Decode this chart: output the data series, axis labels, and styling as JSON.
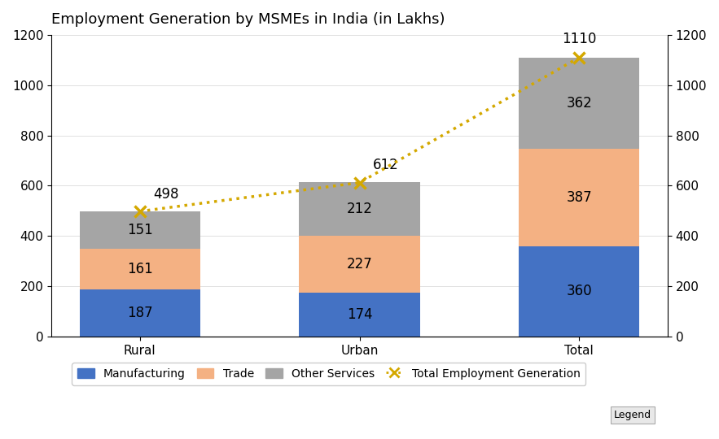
{
  "title": "Employment Generation by MSMEs in India (in Lakhs)",
  "categories": [
    "Rural",
    "Urban",
    "Total"
  ],
  "manufacturing": [
    187,
    174,
    360
  ],
  "trade": [
    161,
    227,
    387
  ],
  "other_services": [
    151,
    212,
    362
  ],
  "total_employment": [
    498,
    612,
    1110
  ],
  "bar_colors": {
    "manufacturing": "#4472C4",
    "trade": "#F4B183",
    "other_services": "#A5A5A5"
  },
  "line_color": "#D4A800",
  "ylim": [
    0,
    1200
  ],
  "legend_labels": [
    "Manufacturing",
    "Trade",
    "Other Services",
    "Total Employment Generation"
  ],
  "bar_width": 0.55,
  "background_color": "#FFFFFF",
  "title_fontsize": 13,
  "tick_fontsize": 11,
  "label_fontsize": 10,
  "annotation_fontsize": 12
}
